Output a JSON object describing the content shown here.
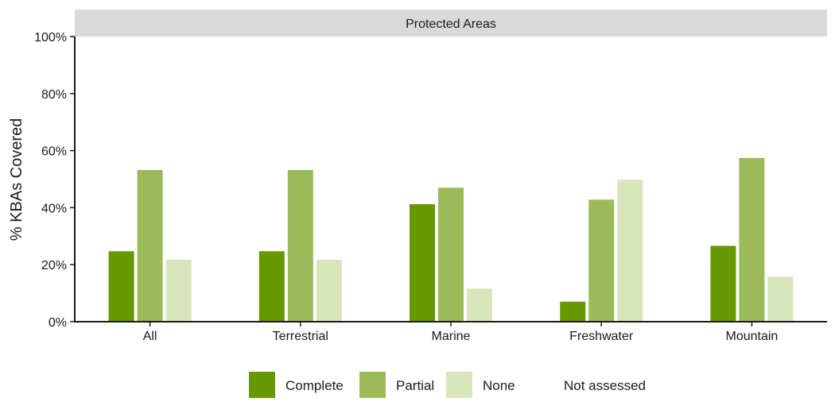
{
  "chart_data": {
    "type": "bar",
    "facet_title": "Protected Areas",
    "ylabel": "% KBAs Covered",
    "xlabel": "",
    "ylim": [
      0,
      100
    ],
    "y_ticks": [
      0,
      20,
      40,
      60,
      80,
      100
    ],
    "y_tick_labels": [
      "0%",
      "20%",
      "40%",
      "60%",
      "80%",
      "100%"
    ],
    "categories": [
      "All",
      "Terrestrial",
      "Marine",
      "Freshwater",
      "Mountain"
    ],
    "series": [
      {
        "name": "Complete",
        "color": "#669900",
        "values": [
          24.7,
          24.7,
          41.2,
          7.0,
          26.6
        ]
      },
      {
        "name": "Partial",
        "color": "#9bbb59",
        "values": [
          53.2,
          53.2,
          47.0,
          42.8,
          57.4
        ]
      },
      {
        "name": "None",
        "color": "#d8e4bc",
        "values": [
          21.7,
          21.7,
          11.6,
          49.8,
          15.8
        ]
      }
    ],
    "legend": {
      "placement": "bottom",
      "entries": [
        {
          "label": "Complete",
          "color": "#669900"
        },
        {
          "label": "Partial",
          "color": "#9bbb59"
        },
        {
          "label": "None",
          "color": "#d8e4bc"
        },
        {
          "label": "Not assessed",
          "color": "#ffffff"
        }
      ]
    },
    "grid": false
  }
}
